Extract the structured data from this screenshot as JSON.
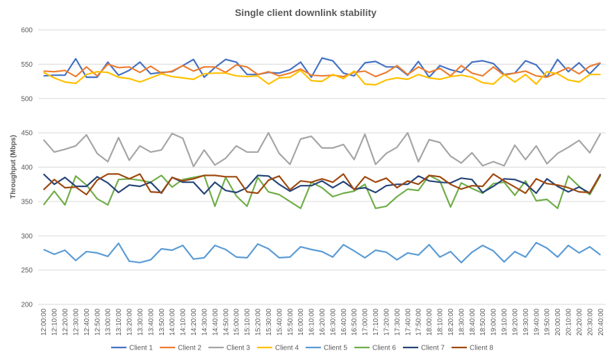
{
  "chart_data": {
    "type": "line",
    "title": "Single client downlink stability",
    "y_label": "Throughput (Mbps)",
    "categories": [
      "12:00:00",
      "12:10:00",
      "12:20:00",
      "12:30:00",
      "12:40:00",
      "12:50:00",
      "13:00:00",
      "13:10:00",
      "13:20:00",
      "13:30:00",
      "13:40:00",
      "13:50:00",
      "14:00:00",
      "14:10:00",
      "14:20:00",
      "14:30:00",
      "14:40:00",
      "14:50:00",
      "15:00:00",
      "15:10:00",
      "15:20:00",
      "15:30:00",
      "15:40:00",
      "15:50:00",
      "16:00:00",
      "16:10:00",
      "16:20:00",
      "16:30:00",
      "16:40:00",
      "16:50:00",
      "17:00:00",
      "17:10:00",
      "17:20:00",
      "17:30:00",
      "17:40:00",
      "17:50:00",
      "18:00:00",
      "18:10:00",
      "18:20:00",
      "18:30:00",
      "18:40:00",
      "18:50:00",
      "19:00:00",
      "19:10:00",
      "19:20:00",
      "19:30:00",
      "19:40:00",
      "19:50:00",
      "20:00:00",
      "20:10:00",
      "20:20:00",
      "20:30:00",
      "20:40:00"
    ],
    "series": [
      {
        "name": "Client 1",
        "color": "#4472c4",
        "values": [
          533,
          534,
          534,
          558,
          531,
          531,
          553,
          534,
          541,
          553,
          536,
          538,
          539,
          548,
          557,
          531,
          545,
          557,
          553,
          535,
          535,
          538,
          537,
          542,
          553,
          531,
          559,
          555,
          537,
          533,
          552,
          554,
          546,
          546,
          534,
          554,
          531,
          548,
          542,
          538,
          553,
          555,
          551,
          535,
          537,
          555,
          549,
          531,
          557,
          539,
          552,
          536,
          552
        ]
      },
      {
        "name": "Client 2",
        "color": "#ed7d31",
        "values": [
          540,
          539,
          541,
          532,
          546,
          533,
          550,
          545,
          546,
          538,
          547,
          537,
          540,
          548,
          540,
          546,
          546,
          538,
          549,
          546,
          535,
          539,
          533,
          537,
          543,
          534,
          533,
          534,
          532,
          538,
          540,
          532,
          538,
          548,
          535,
          546,
          538,
          544,
          533,
          548,
          537,
          533,
          546,
          534,
          537,
          540,
          533,
          531,
          538,
          545,
          536,
          547,
          552
        ]
      },
      {
        "name": "Client 3",
        "color": "#a5a5a5",
        "values": [
          440,
          422,
          426,
          431,
          447,
          420,
          408,
          443,
          410,
          431,
          422,
          425,
          449,
          442,
          401,
          425,
          403,
          413,
          431,
          422,
          422,
          450,
          420,
          404,
          441,
          445,
          428,
          428,
          433,
          411,
          448,
          404,
          420,
          429,
          450,
          408,
          440,
          436,
          416,
          406,
          421,
          402,
          408,
          402,
          432,
          411,
          431,
          405,
          420,
          429,
          439,
          421,
          449
        ]
      },
      {
        "name": "Client 4",
        "color": "#ffc000",
        "values": [
          538,
          530,
          524,
          522,
          535,
          539,
          538,
          531,
          529,
          524,
          530,
          536,
          532,
          530,
          528,
          536,
          537,
          537,
          533,
          532,
          533,
          521,
          530,
          531,
          541,
          526,
          525,
          535,
          529,
          540,
          521,
          520,
          527,
          530,
          528,
          535,
          530,
          528,
          532,
          534,
          531,
          523,
          521,
          535,
          524,
          535,
          521,
          539,
          536,
          527,
          524,
          535,
          535
        ]
      },
      {
        "name": "Client 5",
        "color": "#5b9bd5",
        "values": [
          280,
          273,
          279,
          264,
          277,
          275,
          270,
          289,
          263,
          261,
          265,
          281,
          279,
          286,
          266,
          268,
          286,
          280,
          269,
          268,
          288,
          281,
          268,
          269,
          284,
          280,
          277,
          269,
          287,
          278,
          268,
          279,
          276,
          265,
          275,
          272,
          287,
          269,
          277,
          261,
          276,
          286,
          278,
          262,
          277,
          269,
          290,
          282,
          269,
          286,
          275,
          284,
          272
        ]
      },
      {
        "name": "Client 6",
        "color": "#70ad47",
        "values": [
          345,
          365,
          345,
          387,
          374,
          354,
          345,
          382,
          383,
          381,
          378,
          388,
          371,
          382,
          385,
          388,
          343,
          385,
          358,
          343,
          385,
          364,
          360,
          350,
          340,
          378,
          370,
          357,
          362,
          365,
          375,
          340,
          343,
          357,
          368,
          366,
          388,
          380,
          342,
          377,
          369,
          362,
          376,
          378,
          359,
          380,
          351,
          353,
          340,
          387,
          372,
          360,
          388
        ]
      },
      {
        "name": "Client 7",
        "color": "#264478",
        "values": [
          390,
          375,
          385,
          372,
          372,
          386,
          377,
          363,
          374,
          372,
          378,
          362,
          385,
          378,
          378,
          361,
          378,
          366,
          363,
          370,
          388,
          387,
          375,
          365,
          373,
          373,
          380,
          370,
          379,
          368,
          370,
          363,
          373,
          375,
          375,
          387,
          380,
          378,
          377,
          384,
          382,
          363,
          372,
          383,
          382,
          376,
          362,
          383,
          372,
          364,
          371,
          362,
          390
        ]
      },
      {
        "name": "Client 8",
        "color": "#9e480e",
        "values": [
          367,
          382,
          370,
          371,
          360,
          381,
          390,
          390,
          383,
          390,
          364,
          363,
          385,
          380,
          383,
          388,
          388,
          386,
          386,
          364,
          362,
          381,
          387,
          367,
          380,
          378,
          383,
          378,
          390,
          367,
          386,
          378,
          384,
          370,
          380,
          375,
          388,
          386,
          375,
          368,
          373,
          372,
          390,
          380,
          371,
          362,
          383,
          376,
          374,
          370,
          364,
          363,
          389
        ]
      }
    ],
    "ylim": [
      200,
      600
    ],
    "yticks": [
      200,
      250,
      300,
      350,
      400,
      450,
      500,
      550,
      600
    ],
    "grid": true,
    "legend": "bottom"
  }
}
